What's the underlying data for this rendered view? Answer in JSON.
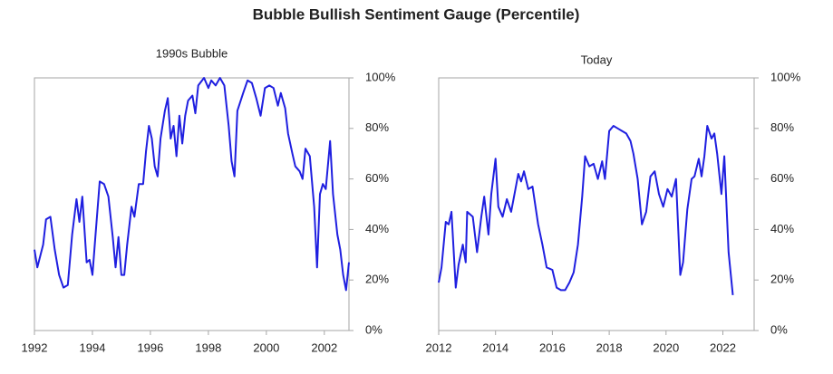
{
  "title": "Bubble Bullish Sentiment Gauge (Percentile)",
  "chart_data": [
    {
      "type": "line",
      "title": "1990s Bubble",
      "color": "#1f1fe0",
      "x": [
        1992.0,
        1992.1,
        1992.3,
        1992.4,
        1992.55,
        1992.7,
        1992.85,
        1993.0,
        1993.15,
        1993.3,
        1993.45,
        1993.55,
        1993.65,
        1993.8,
        1993.9,
        1994.0,
        1994.1,
        1994.25,
        1994.4,
        1994.55,
        1994.7,
        1994.8,
        1994.9,
        1995.0,
        1995.1,
        1995.2,
        1995.35,
        1995.45,
        1995.6,
        1995.75,
        1995.85,
        1995.95,
        1996.05,
        1996.15,
        1996.25,
        1996.35,
        1996.5,
        1996.6,
        1996.7,
        1996.8,
        1996.9,
        1997.0,
        1997.1,
        1997.2,
        1997.3,
        1997.45,
        1997.55,
        1997.65,
        1997.85,
        1998.0,
        1998.1,
        1998.25,
        1998.4,
        1998.55,
        1998.7,
        1998.8,
        1998.9,
        1999.0,
        1999.2,
        1999.35,
        1999.5,
        1999.65,
        1999.8,
        1999.95,
        2000.1,
        2000.25,
        2000.4,
        2000.5,
        2000.65,
        2000.75,
        2000.9,
        2001.0,
        2001.15,
        2001.25,
        2001.35,
        2001.5,
        2001.65,
        2001.75,
        2001.85,
        2001.95,
        2002.05,
        2002.2,
        2002.3,
        2002.45,
        2002.55,
        2002.65,
        2002.75,
        2002.85
      ],
      "values": [
        32,
        25,
        34,
        44,
        45,
        32,
        22,
        17,
        18,
        38,
        52,
        43,
        53,
        27,
        28,
        22,
        37,
        59,
        58,
        53,
        37,
        25,
        37,
        22,
        22,
        34,
        49,
        45,
        58,
        58,
        71,
        81,
        76,
        65,
        61,
        76,
        87,
        92,
        76,
        81,
        69,
        85,
        74,
        85,
        91,
        93,
        86,
        97,
        100,
        96,
        99,
        97,
        100,
        97,
        81,
        67,
        61,
        87,
        94,
        99,
        98,
        92,
        85,
        96,
        97,
        96,
        89,
        94,
        88,
        78,
        70,
        65,
        63,
        60,
        72,
        69,
        49,
        25,
        54,
        58,
        56,
        75,
        54,
        38,
        32,
        22,
        16,
        27
      ],
      "xlim": [
        1992,
        2002.85
      ],
      "xticks": [
        1992,
        1994,
        1996,
        1998,
        2000,
        2002
      ],
      "ylim": [
        0,
        100
      ],
      "yticks": [
        {
          "value": 0,
          "label": "0%"
        },
        {
          "value": 20,
          "label": "20%"
        },
        {
          "value": 40,
          "label": "40%"
        },
        {
          "value": 60,
          "label": "60%"
        },
        {
          "value": 80,
          "label": "80%"
        },
        {
          "value": 100,
          "label": "100%"
        }
      ]
    },
    {
      "type": "line",
      "title": "Today",
      "color": "#1f1fe0",
      "x": [
        2012.0,
        2012.1,
        2012.25,
        2012.35,
        2012.45,
        2012.6,
        2012.7,
        2012.85,
        2012.95,
        2013.0,
        2013.2,
        2013.35,
        2013.5,
        2013.6,
        2013.75,
        2013.85,
        2014.0,
        2014.1,
        2014.25,
        2014.4,
        2014.55,
        2014.65,
        2014.8,
        2014.9,
        2015.0,
        2015.15,
        2015.3,
        2015.5,
        2015.65,
        2015.8,
        2016.0,
        2016.15,
        2016.3,
        2016.45,
        2016.6,
        2016.75,
        2016.9,
        2017.05,
        2017.15,
        2017.3,
        2017.45,
        2017.6,
        2017.75,
        2017.85,
        2018.0,
        2018.15,
        2018.3,
        2018.45,
        2018.6,
        2018.75,
        2018.85,
        2019.0,
        2019.15,
        2019.3,
        2019.45,
        2019.6,
        2019.75,
        2019.9,
        2020.05,
        2020.2,
        2020.35,
        2020.5,
        2020.6,
        2020.75,
        2020.9,
        2021.0,
        2021.15,
        2021.25,
        2021.35,
        2021.45,
        2021.6,
        2021.7,
        2021.8,
        2021.95,
        2022.05,
        2022.2,
        2022.35
      ],
      "values": [
        19,
        25,
        43,
        42,
        47,
        17,
        26,
        34,
        27,
        47,
        45,
        31,
        45,
        53,
        38,
        54,
        68,
        49,
        45,
        52,
        47,
        53,
        62,
        59,
        63,
        56,
        57,
        42,
        34,
        25,
        24,
        17,
        16,
        16,
        19,
        23,
        34,
        53,
        69,
        65,
        66,
        60,
        67,
        60,
        79,
        81,
        80,
        79,
        78,
        75,
        70,
        60,
        42,
        47,
        61,
        63,
        54,
        49,
        56,
        53,
        60,
        22,
        27,
        48,
        60,
        61,
        68,
        61,
        69,
        81,
        76,
        78,
        70,
        54,
        69,
        31,
        14
      ],
      "xlim": [
        2012,
        2023.1
      ],
      "xticks": [
        2012,
        2014,
        2016,
        2018,
        2020,
        2022
      ],
      "ylim": [
        0,
        100
      ],
      "yticks": [
        {
          "value": 0,
          "label": "0%"
        },
        {
          "value": 20,
          "label": "20%"
        },
        {
          "value": 40,
          "label": "40%"
        },
        {
          "value": 60,
          "label": "60%"
        },
        {
          "value": 80,
          "label": "80%"
        },
        {
          "value": 100,
          "label": "100%"
        }
      ]
    }
  ]
}
